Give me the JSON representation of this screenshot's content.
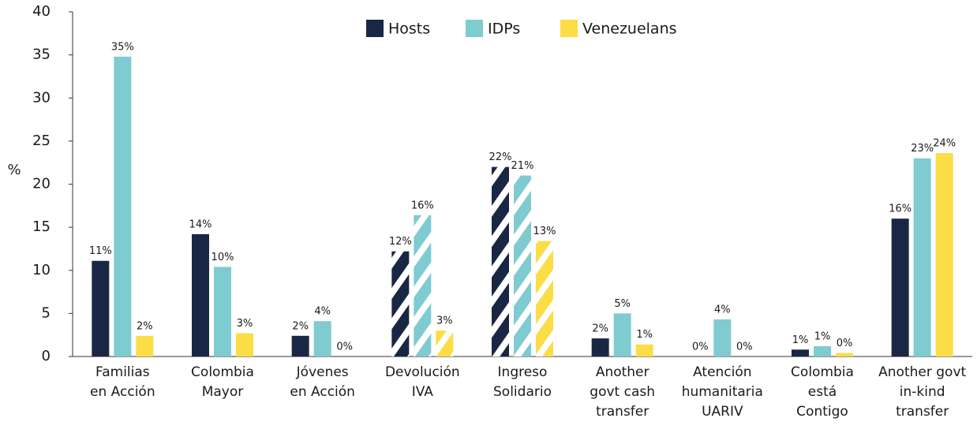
{
  "chart_data": {
    "type": "bar",
    "ylabel": "%",
    "categories": [
      [
        "Familias",
        "en Acción"
      ],
      [
        "Colombia",
        "Mayor"
      ],
      [
        "Jóvenes",
        "en Acción"
      ],
      [
        "Devolución",
        "IVA"
      ],
      [
        "Ingreso",
        "Solidario"
      ],
      [
        "Another",
        "govt cash",
        "transfer"
      ],
      [
        "Atención",
        "humanitaria",
        "UARIV"
      ],
      [
        "Colombia",
        "está",
        "Contigo"
      ],
      [
        "Another govt",
        "in-kind",
        "transfer"
      ]
    ],
    "hatched": [
      false,
      false,
      false,
      true,
      true,
      false,
      false,
      false,
      false
    ],
    "series": [
      {
        "name": "Hosts",
        "color": "#1a2744",
        "values": [
          11.1,
          14.2,
          2.4,
          12.2,
          22,
          2.1,
          0,
          0.8,
          16.0
        ],
        "value_labels": [
          "11%",
          "14%",
          "2%",
          "12%",
          "22%",
          "2%",
          "0%",
          "1%",
          "16%"
        ]
      },
      {
        "name": "IDPs",
        "color": "#7ecbd1",
        "values": [
          34.8,
          10.4,
          4.1,
          16.4,
          21,
          5.0,
          4.3,
          1.2,
          23
        ],
        "value_labels": [
          "35%",
          "10%",
          "4%",
          "16%",
          "21%",
          "5%",
          "4%",
          "1%",
          "23%"
        ]
      },
      {
        "name": "Venezuelans",
        "color": "#fbdd45",
        "values": [
          2.4,
          2.7,
          0,
          3.0,
          13.4,
          1.4,
          0,
          0.4,
          23.6
        ],
        "value_labels": [
          "2%",
          "3%",
          "0%",
          "3%",
          "13%",
          "1%",
          "0%",
          "0%",
          "24%"
        ]
      }
    ],
    "ylim": [
      0,
      40
    ],
    "yticks": [
      0,
      5,
      10,
      15,
      20,
      25,
      30,
      35,
      40
    ],
    "grid": false,
    "legend": "top"
  }
}
